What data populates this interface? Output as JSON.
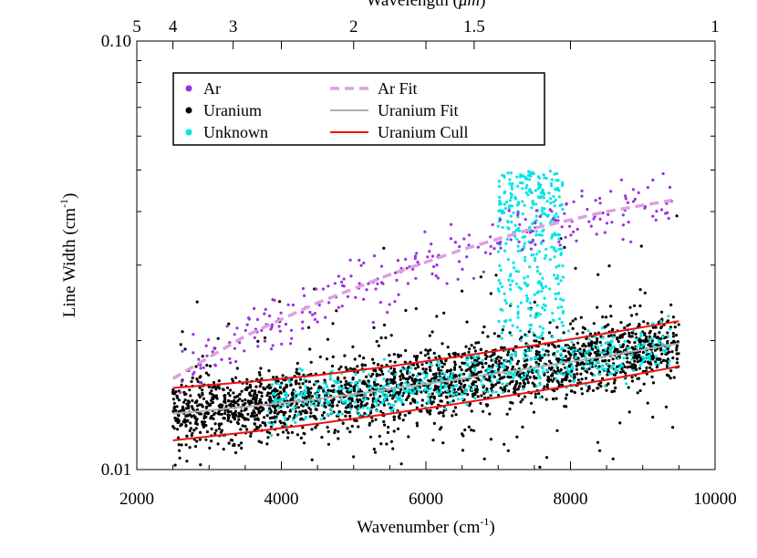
{
  "chart_data": {
    "type": "scatter",
    "title": "",
    "xlabel": "Wavenumber (cm",
    "xlabel_sup": "-1",
    "xlabel_end": ")",
    "ylabel": "Line Width (cm",
    "ylabel_sup": "-1",
    "ylabel_end": ")",
    "top_axis_label": "Wavelength (",
    "top_axis_label_unit": "μm",
    "top_axis_label_end": ")",
    "xlim": [
      2000,
      10000
    ],
    "ylim": [
      0.01,
      0.1
    ],
    "y_scale": "log",
    "grid": false,
    "legend_position": "top-left",
    "x_ticks": [
      {
        "value": 2000,
        "label": "2000"
      },
      {
        "value": 4000,
        "label": "4000"
      },
      {
        "value": 6000,
        "label": "6000"
      },
      {
        "value": 8000,
        "label": "8000"
      },
      {
        "value": 10000,
        "label": "10000"
      }
    ],
    "y_ticks": [
      {
        "value": 0.01,
        "label": "0.01"
      },
      {
        "value": 0.1,
        "label": "0.10"
      }
    ],
    "top_ticks": [
      {
        "wavelength": 5,
        "label": "5"
      },
      {
        "wavelength": 4,
        "label": "4"
      },
      {
        "wavelength": 3,
        "label": "3"
      },
      {
        "wavelength": 2,
        "label": "2"
      },
      {
        "wavelength": 1.5,
        "label": "1.5"
      },
      {
        "wavelength": 1,
        "label": "1"
      }
    ],
    "series": [
      {
        "name": "Ar",
        "kind": "points",
        "color": "#9b30e0"
      },
      {
        "name": "Uranium",
        "kind": "points",
        "color": "#000000"
      },
      {
        "name": "Unknown",
        "kind": "points",
        "color": "#00e5e5"
      },
      {
        "name": "Ar Fit",
        "kind": "line",
        "style": "dashed",
        "color": "#dda0dd",
        "x": [
          2500,
          3500,
          4500,
          5500,
          6500,
          7500,
          8500,
          9400
        ],
        "y": [
          0.0163,
          0.0205,
          0.0245,
          0.0285,
          0.0326,
          0.0366,
          0.04,
          0.0425
        ]
      },
      {
        "name": "Uranium Fit",
        "kind": "line",
        "style": "solid",
        "color": "#b0b0b0",
        "x": [
          2500,
          3500,
          4500,
          5500,
          6500,
          7500,
          8500,
          9500
        ],
        "y": [
          0.0135,
          0.014,
          0.0146,
          0.0154,
          0.0163,
          0.0173,
          0.0184,
          0.0197
        ]
      },
      {
        "name": "Uranium Cull",
        "kind": "line",
        "style": "solid",
        "color": "#ee1111",
        "x": [
          2500,
          3500,
          4500,
          5500,
          6500,
          7500,
          8500,
          9500
        ],
        "y": [
          0.0155,
          0.016,
          0.0166,
          0.0174,
          0.0184,
          0.0195,
          0.0208,
          0.0222
        ]
      },
      {
        "name": "Uranium Cull",
        "kind": "line",
        "style": "solid",
        "color": "#ee1111",
        "x": [
          2500,
          3500,
          4500,
          5500,
          6500,
          7500,
          8500,
          9500
        ],
        "y": [
          0.0117,
          0.0122,
          0.0128,
          0.0135,
          0.0143,
          0.0152,
          0.0162,
          0.0174
        ]
      }
    ]
  }
}
